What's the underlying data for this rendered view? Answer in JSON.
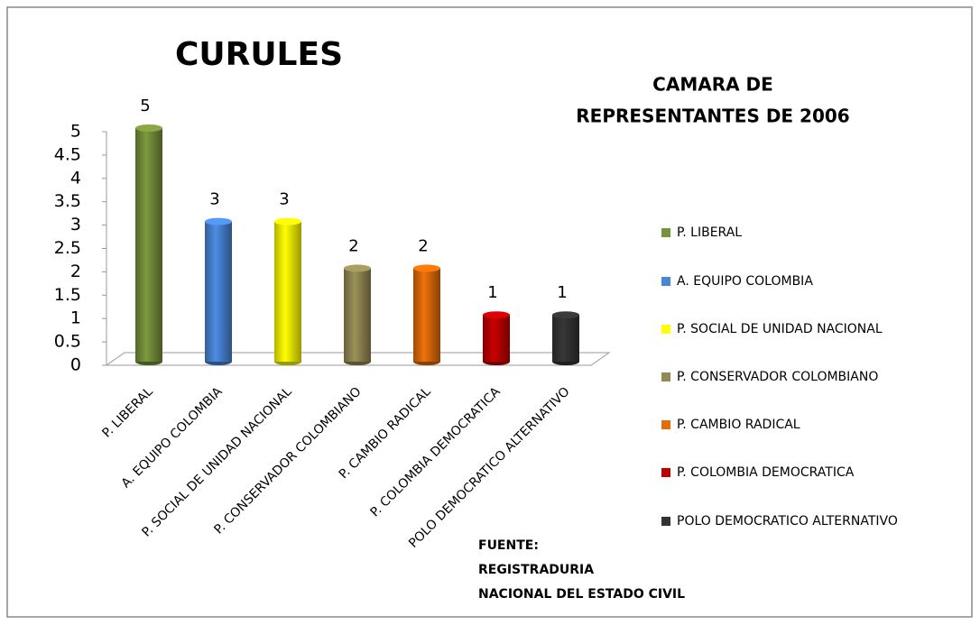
{
  "chart_data": {
    "type": "bar",
    "title": "CURULES",
    "subtitle": [
      "CAMARA DE",
      "REPRESENTANTES DE 2006"
    ],
    "categories": [
      "P. LIBERAL",
      "A. EQUIPO COLOMBIA",
      "P. SOCIAL DE UNIDAD NACIONAL",
      "P. CONSERVADOR COLOMBIANO",
      "P. CAMBIO RADICAL",
      "P. COLOMBIA DEMOCRATICA",
      "POLO DEMOCRATICO ALTERNATIVO"
    ],
    "values": [
      5,
      3,
      3,
      2,
      2,
      1,
      1
    ],
    "colors": [
      "#77933c",
      "#4a86d8",
      "#ffff00",
      "#948a54",
      "#e46c0a",
      "#c00000",
      "#333333"
    ],
    "ylim": [
      0,
      5
    ],
    "yticks": [
      0,
      0.5,
      1,
      1.5,
      2,
      2.5,
      3,
      3.5,
      4,
      4.5,
      5
    ],
    "legend": "right",
    "annotation": [
      "FUENTE:",
      "REGISTRADURIA",
      "NACIONAL DEL ESTADO CIVIL"
    ]
  }
}
